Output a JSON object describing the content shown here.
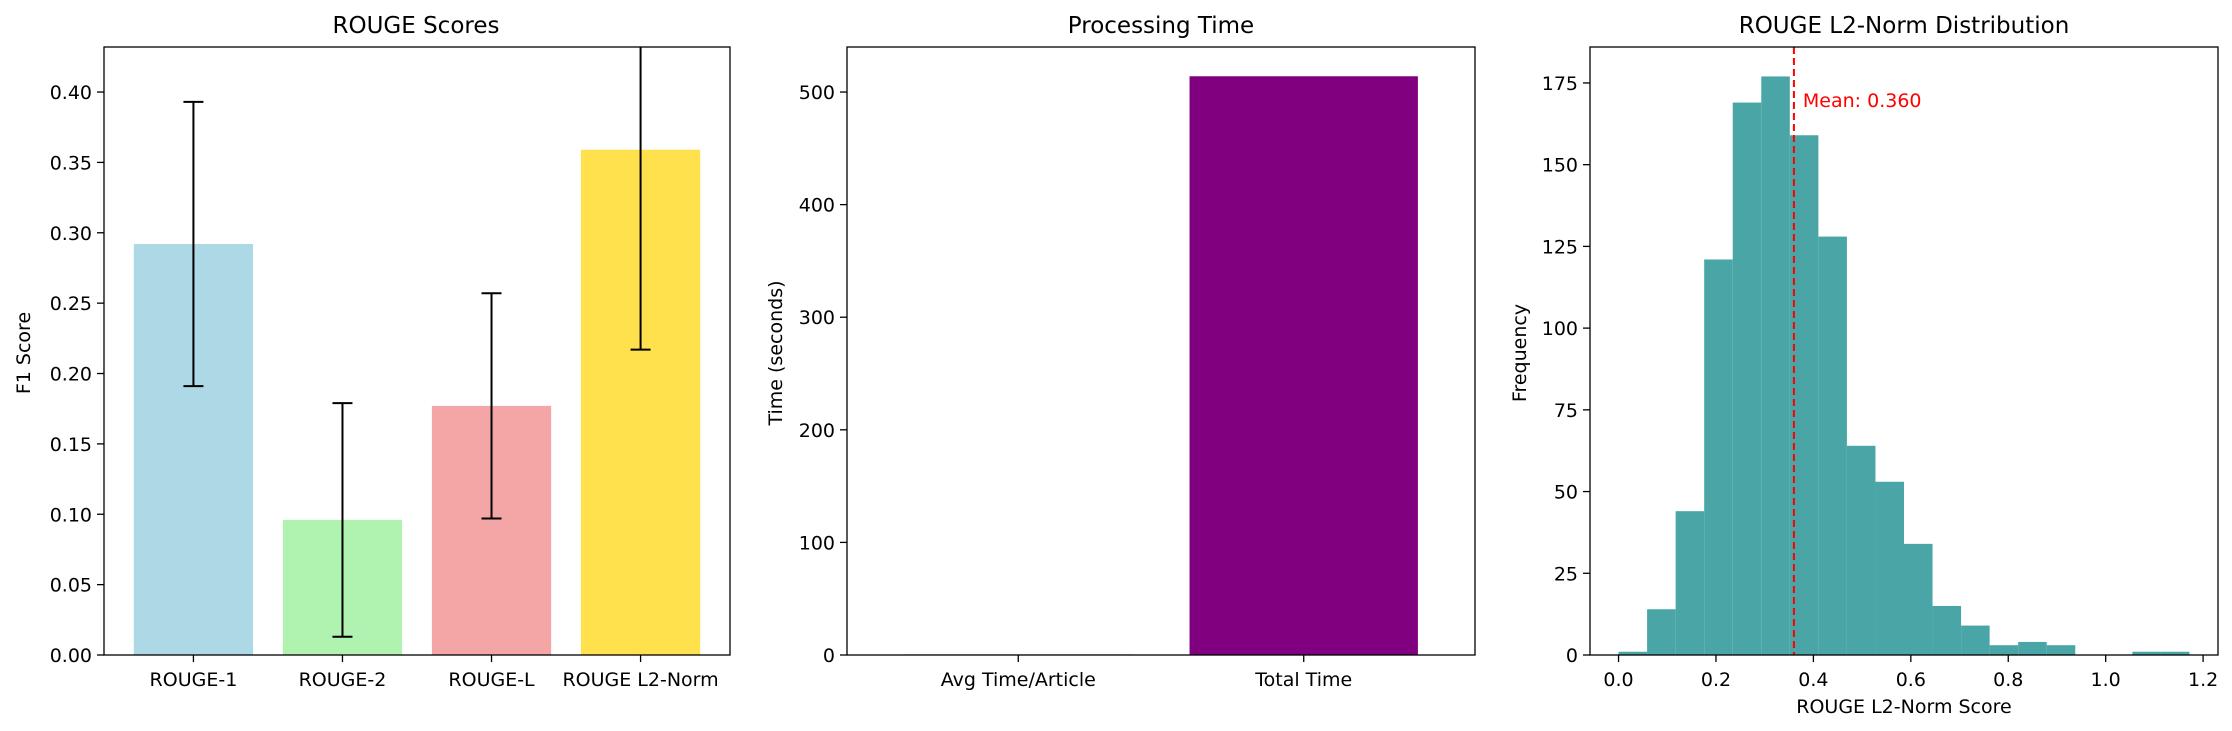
{
  "chart_data": [
    {
      "type": "bar",
      "title": "ROUGE Scores",
      "xlabel": "",
      "ylabel": "F1 Score",
      "categories": [
        "ROUGE-1",
        "ROUGE-2",
        "ROUGE-L",
        "ROUGE L2-Norm"
      ],
      "values": [
        0.292,
        0.096,
        0.177,
        0.359
      ],
      "errors": [
        0.101,
        0.083,
        0.08,
        0.142
      ],
      "colors": [
        "#add8e6",
        "#b0f2b0",
        "#f4a6a6",
        "#ffe14d"
      ],
      "ylim": [
        0,
        0.432
      ],
      "yticks": [
        0.0,
        0.05,
        0.1,
        0.15,
        0.2,
        0.25,
        0.3,
        0.35,
        0.4
      ],
      "ytick_labels": [
        "0.00",
        "0.05",
        "0.10",
        "0.15",
        "0.20",
        "0.25",
        "0.30",
        "0.35",
        "0.40"
      ],
      "grid": false
    },
    {
      "type": "bar",
      "title": "Processing Time",
      "xlabel": "",
      "ylabel": "Time (seconds)",
      "categories": [
        "Avg Time/Article",
        "Total Time"
      ],
      "values": [
        0.5,
        514
      ],
      "colors": [
        "#800080",
        "#800080"
      ],
      "ylim": [
        0,
        540
      ],
      "yticks": [
        0,
        100,
        200,
        300,
        400,
        500
      ],
      "ytick_labels": [
        "0",
        "100",
        "200",
        "300",
        "400",
        "500"
      ],
      "grid": false
    },
    {
      "type": "bar",
      "subtype": "histogram",
      "title": "ROUGE L2-Norm Distribution",
      "xlabel": "ROUGE L2-Norm Score",
      "ylabel": "Frequency",
      "bin_edges": [
        0.0,
        0.0586,
        0.1172,
        0.1758,
        0.2344,
        0.293,
        0.3516,
        0.4102,
        0.4688,
        0.5274,
        0.586,
        0.6446,
        0.7032,
        0.7618,
        0.8204,
        0.879,
        0.9376,
        0.9962,
        1.0548,
        1.1134,
        1.172
      ],
      "counts": [
        1,
        14,
        44,
        121,
        169,
        177,
        159,
        128,
        64,
        53,
        34,
        15,
        9,
        3,
        4,
        3,
        0,
        0,
        1,
        1
      ],
      "color": "#4aa6a6",
      "xlim": [
        -0.0586,
        1.2306
      ],
      "ylim": [
        0,
        186
      ],
      "xticks": [
        0.0,
        0.2,
        0.4,
        0.6,
        0.8,
        1.0,
        1.2
      ],
      "xtick_labels": [
        "0.0",
        "0.2",
        "0.4",
        "0.6",
        "0.8",
        "1.0",
        "1.2"
      ],
      "yticks": [
        0,
        25,
        50,
        75,
        100,
        125,
        150,
        175
      ],
      "ytick_labels": [
        "0",
        "25",
        "50",
        "75",
        "100",
        "125",
        "150",
        "175"
      ],
      "mean_line": {
        "value": 0.36,
        "label": "Mean: 0.360",
        "color": "#ff0000",
        "style": "dashed"
      },
      "grid": false
    }
  ]
}
